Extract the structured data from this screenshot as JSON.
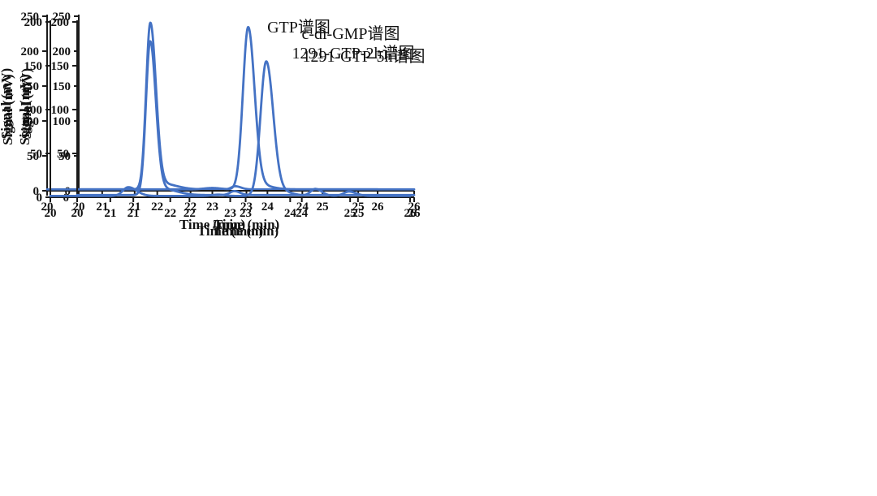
{
  "page": {
    "background_color": "#ffffff",
    "description_labels": {
      "x_axis": "Time (min)",
      "y_axis": "Signal (mV)"
    }
  },
  "chart_data": [
    {
      "type": "line",
      "panel": "top-left",
      "title": "GTP谱图",
      "xlabel": "Time (min)",
      "ylabel": "Signal (mV)",
      "xlim": [
        20,
        26
      ],
      "ylim": [
        0,
        250
      ],
      "xticks": [
        20,
        21,
        22,
        23,
        24,
        25,
        26
      ],
      "yticks": [
        0,
        50,
        100,
        150,
        200,
        250
      ],
      "grid": false,
      "legend": "none",
      "line_color": "#4472C4",
      "axis_color": "#1a1a1a",
      "baseline_mV": 2,
      "peaks": [
        {
          "retention_time_min": 21.28,
          "height_mV": 236,
          "sigma_left_min": 0.075,
          "sigma_right_min": 0.1
        },
        {
          "retention_time_min": 21.5,
          "height_mV": 8,
          "sigma_left_min": 0.15,
          "sigma_right_min": 0.25
        },
        {
          "retention_time_min": 22.8,
          "height_mV": 4.5,
          "sigma_left_min": 0.07,
          "sigma_right_min": 0.1
        }
      ]
    },
    {
      "type": "line",
      "panel": "top-right",
      "title": "c-di-GMP谱图",
      "xlabel": "Time (min)",
      "ylabel": "Signal (mV)",
      "xlim": [
        20,
        26
      ],
      "ylim": [
        0,
        250
      ],
      "xticks": [
        20,
        21,
        22,
        23,
        24,
        25,
        26
      ],
      "yticks": [
        0,
        50,
        100,
        150,
        200,
        250
      ],
      "grid": false,
      "legend": "none",
      "line_color": "#4472C4",
      "axis_color": "#1a1a1a",
      "baseline_mV": 2,
      "peaks": [
        {
          "retention_time_min": 23.65,
          "height_mV": 231,
          "sigma_left_min": 0.095,
          "sigma_right_min": 0.115
        },
        {
          "retention_time_min": 23.85,
          "height_mV": 6,
          "sigma_left_min": 0.12,
          "sigma_right_min": 0.22
        },
        {
          "retention_time_min": 23.0,
          "height_mV": 2,
          "sigma_left_min": 0.15,
          "sigma_right_min": 0.15
        }
      ]
    },
    {
      "type": "line",
      "panel": "bottom-left",
      "title": "1291-GTP-2h谱图",
      "xlabel": "Time (min)",
      "ylabel": "Signal (mV)",
      "xlim": [
        20,
        26
      ],
      "ylim": [
        0,
        200
      ],
      "xticks": [
        20,
        21,
        22,
        23,
        24,
        25,
        26
      ],
      "yticks": [
        0,
        50,
        100,
        150,
        200
      ],
      "grid": false,
      "legend": "none",
      "line_color": "#4472C4",
      "axis_color": "#1a1a1a",
      "baseline_mV": 2.5,
      "peaks": [
        {
          "retention_time_min": 21.3,
          "height_mV": 173,
          "sigma_left_min": 0.075,
          "sigma_right_min": 0.1
        },
        {
          "retention_time_min": 21.52,
          "height_mV": 7,
          "sigma_left_min": 0.15,
          "sigma_right_min": 0.25
        },
        {
          "retention_time_min": 22.8,
          "height_mV": 4.5,
          "sigma_left_min": 0.08,
          "sigma_right_min": 0.1
        }
      ]
    },
    {
      "type": "line",
      "panel": "bottom-right",
      "title": "1291-GTP-5h谱图",
      "xlabel": "Time (min)",
      "ylabel": "Signal (mV)",
      "xlim": [
        20,
        26
      ],
      "ylim": [
        0,
        200
      ],
      "xticks": [
        20,
        21,
        22,
        23,
        24,
        25,
        26
      ],
      "yticks": [
        0,
        50,
        100,
        150,
        200
      ],
      "grid": false,
      "legend": "none",
      "line_color": "#4472C4",
      "axis_color": "#1a1a1a",
      "baseline_mV": 1.5,
      "peaks": [
        {
          "retention_time_min": 23.6,
          "height_mV": 152,
          "sigma_left_min": 0.095,
          "sigma_right_min": 0.115
        },
        {
          "retention_time_min": 23.8,
          "height_mV": 6,
          "sigma_left_min": 0.12,
          "sigma_right_min": 0.2
        },
        {
          "retention_time_min": 21.3,
          "height_mV": 10,
          "sigma_left_min": 0.09,
          "sigma_right_min": 0.14
        },
        {
          "retention_time_min": 22.8,
          "height_mV": 1.5,
          "sigma_left_min": 0.1,
          "sigma_right_min": 0.1
        },
        {
          "retention_time_min": 24.42,
          "height_mV": 8,
          "sigma_left_min": 0.08,
          "sigma_right_min": 0.11
        },
        {
          "retention_time_min": 24.98,
          "height_mV": 5,
          "sigma_left_min": 0.09,
          "sigma_right_min": 0.12
        }
      ]
    }
  ]
}
